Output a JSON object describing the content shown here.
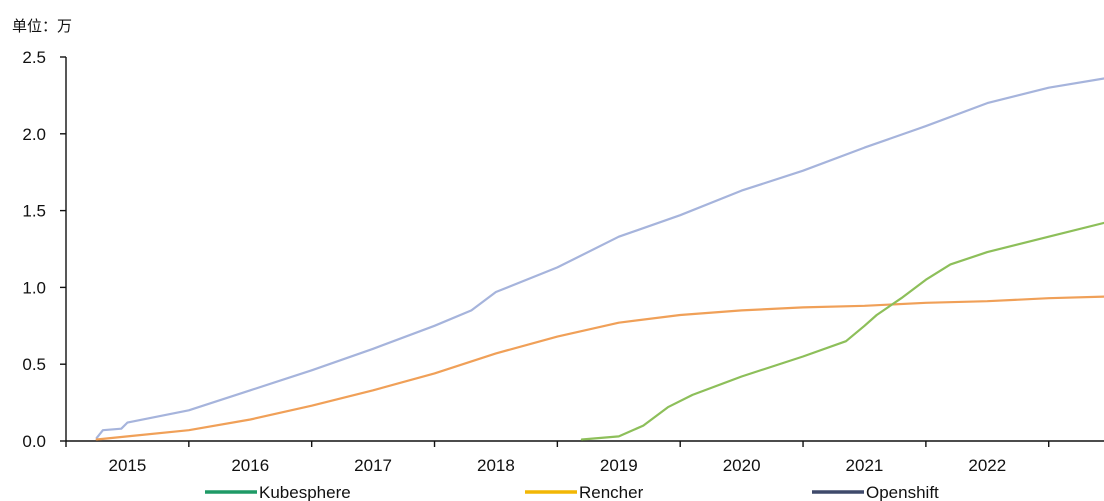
{
  "chart_data": {
    "type": "line",
    "unit_label": "单位：万",
    "ylim": [
      0,
      2.5
    ],
    "y_ticks": [
      {
        "value": 0.0,
        "label": "0.0"
      },
      {
        "value": 0.5,
        "label": "0.5"
      },
      {
        "value": 1.0,
        "label": "1.0"
      },
      {
        "value": 1.5,
        "label": "1.5"
      },
      {
        "value": 2.0,
        "label": "2.0"
      },
      {
        "value": 2.5,
        "label": "2.5"
      }
    ],
    "xlim": [
      2014.5,
      2022.95
    ],
    "x_ticks": [
      2014.5,
      2015.5,
      2016.5,
      2017.5,
      2018.5,
      2019.5,
      2020.5,
      2021.5,
      2022.5
    ],
    "x_labels": [
      {
        "value": 2015,
        "label": "2015"
      },
      {
        "value": 2016,
        "label": "2016"
      },
      {
        "value": 2017,
        "label": "2017"
      },
      {
        "value": 2018,
        "label": "2018"
      },
      {
        "value": 2019,
        "label": "2019"
      },
      {
        "value": 2020,
        "label": "2020"
      },
      {
        "value": 2021,
        "label": "2021"
      },
      {
        "value": 2022,
        "label": "2022"
      }
    ],
    "grid": false,
    "legend_position": "bottom",
    "legend": [
      {
        "name": "Kubesphere",
        "color": "#1e9a66"
      },
      {
        "name": "Rencher",
        "color": "#f2b705"
      },
      {
        "name": "Openshift",
        "color": "#3f4a6b"
      }
    ],
    "series": [
      {
        "name": "Openshift",
        "color": "#a6b4dc",
        "points": [
          [
            2014.75,
            0.02
          ],
          [
            2014.8,
            0.07
          ],
          [
            2014.95,
            0.08
          ],
          [
            2015.0,
            0.12
          ],
          [
            2015.5,
            0.2
          ],
          [
            2016.0,
            0.33
          ],
          [
            2016.5,
            0.46
          ],
          [
            2017.0,
            0.6
          ],
          [
            2017.5,
            0.75
          ],
          [
            2017.8,
            0.85
          ],
          [
            2018.0,
            0.97
          ],
          [
            2018.5,
            1.13
          ],
          [
            2019.0,
            1.33
          ],
          [
            2019.5,
            1.47
          ],
          [
            2020.0,
            1.63
          ],
          [
            2020.5,
            1.76
          ],
          [
            2021.0,
            1.91
          ],
          [
            2021.5,
            2.05
          ],
          [
            2022.0,
            2.2
          ],
          [
            2022.5,
            2.3
          ],
          [
            2022.95,
            2.36
          ]
        ]
      },
      {
        "name": "Rencher",
        "color": "#f0a058",
        "points": [
          [
            2014.75,
            0.01
          ],
          [
            2015.0,
            0.03
          ],
          [
            2015.5,
            0.07
          ],
          [
            2016.0,
            0.14
          ],
          [
            2016.5,
            0.23
          ],
          [
            2017.0,
            0.33
          ],
          [
            2017.5,
            0.44
          ],
          [
            2018.0,
            0.57
          ],
          [
            2018.5,
            0.68
          ],
          [
            2019.0,
            0.77
          ],
          [
            2019.5,
            0.82
          ],
          [
            2020.0,
            0.85
          ],
          [
            2020.5,
            0.87
          ],
          [
            2021.0,
            0.88
          ],
          [
            2021.5,
            0.9
          ],
          [
            2022.0,
            0.91
          ],
          [
            2022.5,
            0.93
          ],
          [
            2022.95,
            0.94
          ]
        ]
      },
      {
        "name": "Kubesphere",
        "color": "#8dbf5a",
        "points": [
          [
            2018.7,
            0.01
          ],
          [
            2019.0,
            0.03
          ],
          [
            2019.2,
            0.1
          ],
          [
            2019.4,
            0.22
          ],
          [
            2019.6,
            0.3
          ],
          [
            2020.0,
            0.42
          ],
          [
            2020.5,
            0.55
          ],
          [
            2020.85,
            0.65
          ],
          [
            2021.0,
            0.75
          ],
          [
            2021.1,
            0.82
          ],
          [
            2021.3,
            0.93
          ],
          [
            2021.5,
            1.05
          ],
          [
            2021.7,
            1.15
          ],
          [
            2022.0,
            1.23
          ],
          [
            2022.5,
            1.33
          ],
          [
            2022.95,
            1.42
          ]
        ]
      }
    ]
  }
}
